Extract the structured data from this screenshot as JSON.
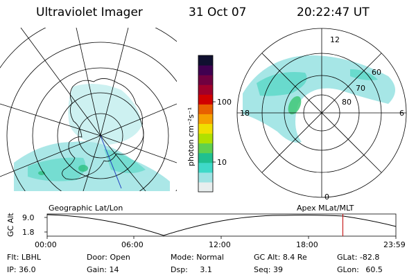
{
  "header": {
    "instrument": "Ultraviolet Imager",
    "date": "31 Oct 07",
    "time": "20:22:47 UT"
  },
  "colorbar": {
    "unit_label": "photon cm⁻²s⁻¹",
    "ticks": [
      "100",
      "10"
    ],
    "scale": "log",
    "colors": [
      "#e8eeee",
      "#9fe3e3",
      "#3fd9c8",
      "#20c090",
      "#5fd050",
      "#b0e000",
      "#f0e000",
      "#f6a000",
      "#e86000",
      "#d00000",
      "#a0002a",
      "#700040",
      "#400050",
      "#101030"
    ]
  },
  "polar_plot": {
    "mlt_labels": {
      "top": "12",
      "left": "18",
      "right": "6",
      "bottom": "0"
    },
    "lat_labels": [
      "60",
      "70",
      "80"
    ]
  },
  "panel_labels": {
    "left": "Geographic Lat/Lon",
    "right": "Apex  MLat/MLT"
  },
  "altitude_strip": {
    "axis_label": "GC Alt",
    "y_ticks": [
      "9.0",
      "1.8"
    ],
    "x_ticks": [
      "00:00",
      "06:00",
      "12:00",
      "18:00",
      "23:59"
    ],
    "current_time_fraction": 0.848
  },
  "info": {
    "filter_label": "Flt:",
    "filter_value": "LBHL",
    "ip_label": "IP:",
    "ip_value": "36.0",
    "door_label": "Door:",
    "door_value": "Open",
    "gain_label": "Gain:",
    "gain_value": "14",
    "mode_label": "Mode:",
    "mode_value": "Normal",
    "dsp_label": "Dsp:",
    "dsp_value": "3.1",
    "gcalt_label": "GC Alt:",
    "gcalt_value": "8.4 Re",
    "seq_label": "Seq:",
    "seq_value": "39",
    "glat_label": "GLat:",
    "glat_value": "-82.8",
    "glon_label": "GLon:",
    "glon_value": "60.5"
  }
}
